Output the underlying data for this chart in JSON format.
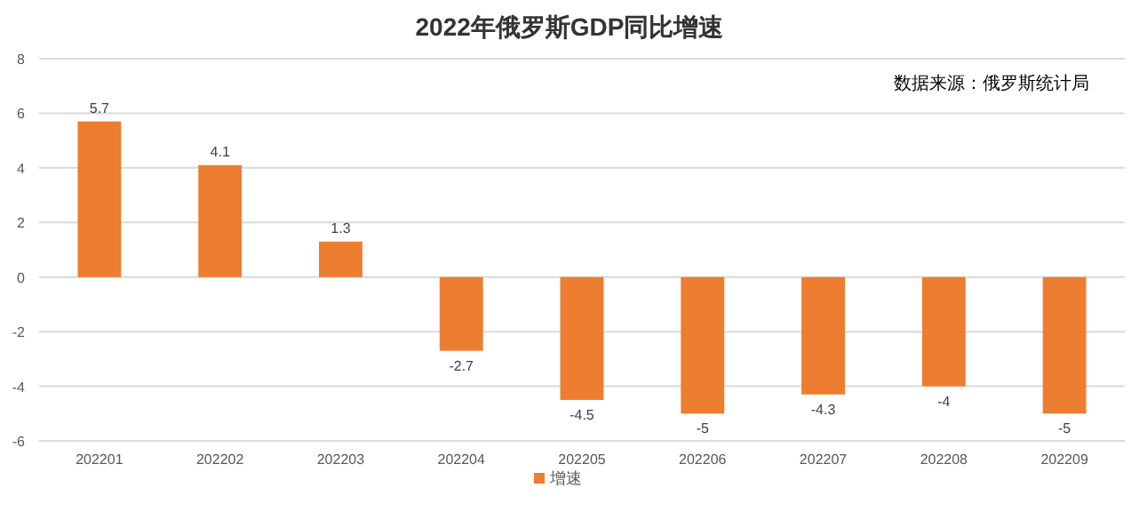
{
  "chart_data": {
    "type": "bar",
    "title": "2022年俄罗斯GDP同比增速",
    "categories": [
      "202201",
      "202202",
      "202203",
      "202204",
      "202205",
      "202206",
      "202207",
      "202208",
      "202209"
    ],
    "series": [
      {
        "name": "增速",
        "color": "#ed7d31",
        "values": [
          5.7,
          4.1,
          1.3,
          -2.7,
          -4.5,
          -5,
          -4.3,
          -4,
          -5
        ]
      }
    ],
    "ylim": [
      -6,
      8
    ],
    "yticks": [
      -6,
      -4,
      -2,
      0,
      2,
      4,
      6,
      8
    ],
    "grid": "y",
    "legend": "bottom",
    "data_labels": true,
    "annotations": [
      "数据来源：俄罗斯统计局"
    ]
  }
}
